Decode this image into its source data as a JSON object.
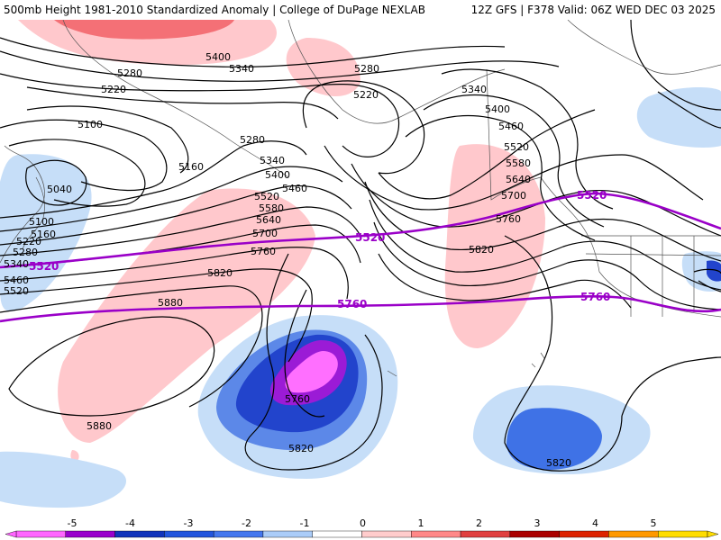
{
  "header": {
    "left_title": "500mb Height 1981-2010 Standardized Anomaly | College of DuPage NEXLAB",
    "right_title": "12Z GFS | F378 Valid: 06Z WED DEC 03 2025"
  },
  "contour_labels": {
    "h5400_top": "5400",
    "h5340_top": "5340",
    "h5280_a": "5280",
    "h5280_b": "5280",
    "h5220_a": "5220",
    "h5220_b": "5220",
    "h5100": "5100",
    "h5160_a": "5160",
    "h5040": "5040",
    "h5280_c": "5280",
    "h5340_mid": "5340",
    "h5400_mid": "5400",
    "h5460_mid": "5460",
    "h5520_mid": "5520",
    "h5580_mid": "5580",
    "h5640_mid": "5640",
    "h5700_mid": "5700",
    "h5760_mid": "5760",
    "h5820_a": "5820",
    "h5880_a": "5880",
    "h5880_b": "5880",
    "h5340_east": "5340",
    "h5400_east": "5400",
    "h5460_east": "5460",
    "h5520_east": "5520",
    "h5580_east": "5580",
    "h5640_east": "5640",
    "h5700_east": "5700",
    "h5760_east": "5760",
    "h5820_east": "5820",
    "h5820_low": "5820",
    "h5820_se": "5820",
    "h5760_low": "5760",
    "h5100_w": "5100",
    "h5160_w": "5160",
    "h5220_w": "5220",
    "h5280_w": "5280",
    "h5340_w": "5340",
    "h5460_w": "5460",
    "h5520_w": "5520"
  },
  "purple_labels": {
    "p5520_w": "5520",
    "p5520_mid": "5520",
    "p5520_e": "5520",
    "p5760_mid": "5760",
    "p5760_e": "5760"
  },
  "colorbar": {
    "ticks": [
      "-5",
      "-4",
      "-3",
      "-2",
      "-1",
      "0",
      "1",
      "2",
      "3",
      "4",
      "5"
    ],
    "colors": [
      "#ff66ff",
      "#9900cc",
      "#1133bb",
      "#2255dd",
      "#4477ee",
      "#aaccf8",
      "#ffffff",
      "#ffcccc",
      "#ff8888",
      "#e04040",
      "#aa0000",
      "#dd2200",
      "#ff9900",
      "#ffdd00"
    ]
  }
}
